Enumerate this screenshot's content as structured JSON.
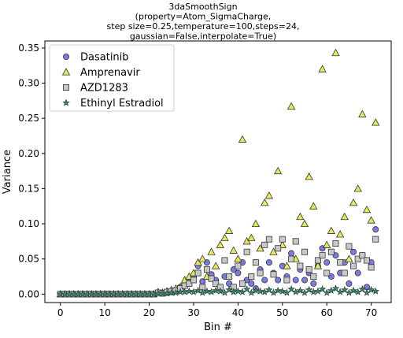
{
  "chart_data": {
    "type": "scatter",
    "title_lines": [
      "3daSmoothSign",
      "(property=Atom_SigmaCharge,",
      "step size=0.25,temperature=100,steps=24,",
      "gaussian=False,interpolate=True)"
    ],
    "xlabel": "Bin #",
    "ylabel": "Variance",
    "xlim": [
      -3.5,
      74.5
    ],
    "ylim": [
      -0.012,
      0.36
    ],
    "xticks": [
      0,
      10,
      20,
      30,
      40,
      50,
      60,
      70
    ],
    "yticks": [
      0.0,
      0.05,
      0.1,
      0.15,
      0.2,
      0.25,
      0.3,
      0.35
    ],
    "ytick_labels": [
      "0.00",
      "0.05",
      "0.10",
      "0.15",
      "0.20",
      "0.25",
      "0.30",
      "0.35"
    ],
    "grid": false,
    "legend_position": "top-left",
    "series": [
      {
        "name": "Dasatinib",
        "marker": "circle",
        "color": "#7b7be8",
        "x": [
          0,
          1,
          2,
          3,
          4,
          5,
          6,
          7,
          8,
          9,
          10,
          11,
          12,
          13,
          14,
          15,
          16,
          17,
          18,
          19,
          20,
          21,
          22,
          23,
          24,
          25,
          26,
          27,
          28,
          29,
          30,
          31,
          32,
          33,
          34,
          35,
          36,
          37,
          38,
          39,
          40,
          41,
          42,
          43,
          44,
          45,
          46,
          47,
          48,
          49,
          50,
          51,
          52,
          53,
          54,
          55,
          56,
          57,
          58,
          59,
          60,
          61,
          62,
          63,
          64,
          65,
          66,
          67,
          68,
          69,
          70,
          71
        ],
        "values": [
          0,
          0,
          0,
          0,
          0,
          0,
          0,
          0,
          0,
          0,
          0,
          0,
          0,
          0,
          0,
          0,
          0,
          0,
          0,
          0,
          0,
          0,
          0.002,
          0.001,
          0.002,
          0.003,
          0.006,
          0.01,
          0.015,
          0.02,
          0.025,
          0.04,
          0.018,
          0.045,
          0.028,
          0.02,
          0.01,
          0.025,
          0.015,
          0.035,
          0.03,
          0.045,
          0.02,
          0.015,
          0.008,
          0.035,
          0.02,
          0.045,
          0.03,
          0.02,
          0.04,
          0.025,
          0.058,
          0.02,
          0.035,
          0.02,
          0.03,
          0.015,
          0.04,
          0.065,
          0.045,
          0.025,
          0.055,
          0.03,
          0.045,
          0.015,
          0.06,
          0.03,
          0.055,
          0.01,
          0.045,
          0.092
        ]
      },
      {
        "name": "Amprenavir",
        "marker": "triangle",
        "color": "#e8e85a",
        "x": [
          0,
          1,
          2,
          3,
          4,
          5,
          6,
          7,
          8,
          9,
          10,
          11,
          12,
          13,
          14,
          15,
          16,
          17,
          18,
          19,
          20,
          21,
          22,
          23,
          24,
          25,
          26,
          27,
          28,
          29,
          30,
          31,
          32,
          33,
          34,
          35,
          36,
          37,
          38,
          39,
          40,
          41,
          42,
          43,
          44,
          45,
          46,
          47,
          48,
          49,
          50,
          51,
          52,
          53,
          54,
          55,
          56,
          57,
          58,
          59,
          60,
          61,
          62,
          63,
          64,
          65,
          66,
          67,
          68,
          69,
          70,
          71
        ],
        "values": [
          0,
          0,
          0,
          0,
          0,
          0,
          0,
          0,
          0,
          0,
          0,
          0,
          0,
          0,
          0,
          0,
          0,
          0,
          0,
          0,
          0,
          0,
          0.003,
          0.002,
          0.004,
          0.006,
          0.008,
          0.01,
          0.02,
          0.025,
          0.03,
          0.045,
          0.05,
          0.025,
          0.06,
          0.04,
          0.07,
          0.08,
          0.09,
          0.062,
          0.05,
          0.22,
          0.075,
          0.08,
          0.1,
          0.065,
          0.13,
          0.14,
          0.06,
          0.175,
          0.07,
          0.04,
          0.267,
          0.05,
          0.11,
          0.1,
          0.167,
          0.125,
          0.04,
          0.32,
          0.07,
          0.09,
          0.343,
          0.085,
          0.11,
          0.05,
          0.13,
          0.15,
          0.256,
          0.12,
          0.105,
          0.244
        ]
      },
      {
        "name": "AZD1283",
        "marker": "square",
        "color": "#c8c8c8",
        "x": [
          0,
          1,
          2,
          3,
          4,
          5,
          6,
          7,
          8,
          9,
          10,
          11,
          12,
          13,
          14,
          15,
          16,
          17,
          18,
          19,
          20,
          21,
          22,
          23,
          24,
          25,
          26,
          27,
          28,
          29,
          30,
          31,
          32,
          33,
          34,
          35,
          36,
          37,
          38,
          39,
          40,
          41,
          42,
          43,
          44,
          45,
          46,
          47,
          48,
          49,
          50,
          51,
          52,
          53,
          54,
          55,
          56,
          57,
          58,
          59,
          60,
          61,
          62,
          63,
          64,
          65,
          66,
          67,
          68,
          69,
          70,
          71
        ],
        "values": [
          0,
          0,
          0,
          0,
          0,
          0,
          0,
          0,
          0,
          0,
          0,
          0,
          0,
          0,
          0,
          0,
          0,
          0,
          0,
          0,
          0,
          0,
          0.002,
          0.001,
          0.003,
          0.004,
          0.005,
          0.008,
          0.012,
          0.015,
          0.02,
          0.03,
          0.01,
          0.035,
          0.022,
          0.015,
          0.01,
          0.048,
          0.025,
          0.01,
          0.04,
          0.015,
          0.06,
          0.025,
          0.045,
          0.03,
          0.07,
          0.078,
          0.028,
          0.065,
          0.078,
          0.02,
          0.05,
          0.075,
          0.04,
          0.06,
          0.035,
          0.025,
          0.048,
          0.055,
          0.03,
          0.06,
          0.072,
          0.045,
          0.03,
          0.068,
          0.04,
          0.05,
          0.055,
          0.048,
          0.038,
          0.078
        ]
      },
      {
        "name": "Ethinyl Estradiol",
        "marker": "star",
        "color": "#2e8b6a",
        "x": [
          0,
          1,
          2,
          3,
          4,
          5,
          6,
          7,
          8,
          9,
          10,
          11,
          12,
          13,
          14,
          15,
          16,
          17,
          18,
          19,
          20,
          21,
          22,
          23,
          24,
          25,
          26,
          27,
          28,
          29,
          30,
          31,
          32,
          33,
          34,
          35,
          36,
          37,
          38,
          39,
          40,
          41,
          42,
          43,
          44,
          45,
          46,
          47,
          48,
          49,
          50,
          51,
          52,
          53,
          54,
          55,
          56,
          57,
          58,
          59,
          60,
          61,
          62,
          63,
          64,
          65,
          66,
          67,
          68,
          69,
          70,
          71
        ],
        "values": [
          0,
          0,
          0,
          0,
          0,
          0,
          0,
          0,
          0,
          0,
          0,
          0,
          0,
          0,
          0,
          0,
          0,
          0,
          0,
          0,
          0,
          0,
          0.001,
          0.001,
          0.001,
          0.002,
          0.002,
          0.003,
          0.003,
          0.004,
          0.003,
          0.005,
          0.002,
          0.004,
          0.003,
          0.005,
          0.004,
          0.002,
          0.006,
          0.003,
          0.004,
          0.003,
          0.007,
          0.002,
          0.005,
          0.004,
          0.003,
          0.006,
          0.002,
          0.005,
          0.004,
          0.002,
          0.007,
          0.003,
          0.005,
          0.002,
          0.006,
          0.003,
          0.004,
          0.007,
          0.002,
          0.005,
          0.008,
          0.003,
          0.006,
          0.002,
          0.005,
          0.003,
          0.007,
          0.002,
          0.006,
          0.004
        ]
      }
    ]
  }
}
